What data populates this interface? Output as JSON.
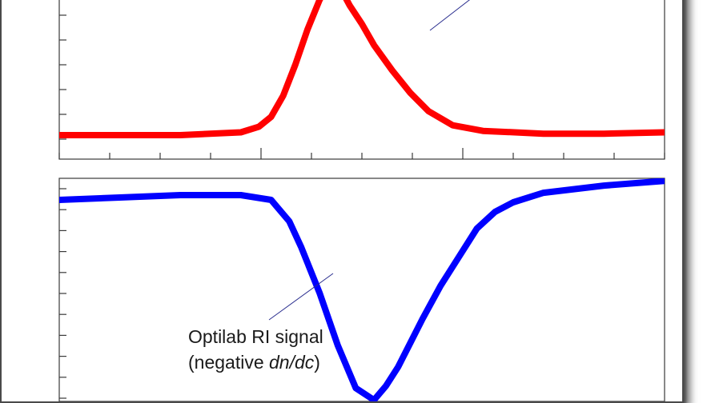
{
  "chart_data": [
    {
      "type": "line",
      "series": [
        {
          "color": "#ff0000",
          "x": [
            0,
            0.1,
            0.2,
            0.3,
            0.33,
            0.35,
            0.37,
            0.39,
            0.41,
            0.43,
            0.44,
            0.45,
            0.46,
            0.47,
            0.48,
            0.5,
            0.52,
            0.55,
            0.58,
            0.61,
            0.65,
            0.7,
            0.8,
            0.9,
            1.0
          ],
          "y": [
            0.0,
            0.0,
            0.0,
            0.02,
            0.06,
            0.13,
            0.28,
            0.5,
            0.75,
            0.96,
            1.04,
            1.08,
            1.06,
            1.0,
            0.92,
            0.79,
            0.64,
            0.46,
            0.3,
            0.17,
            0.07,
            0.03,
            0.01,
            0.01,
            0.02
          ]
        }
      ],
      "grid": false
    },
    {
      "type": "line",
      "series": [
        {
          "color": "#0000ff",
          "x": [
            0,
            0.1,
            0.2,
            0.3,
            0.35,
            0.38,
            0.4,
            0.43,
            0.46,
            0.49,
            0.52,
            0.54,
            0.56,
            0.58,
            0.6,
            0.63,
            0.66,
            0.69,
            0.72,
            0.75,
            0.8,
            0.9,
            1.0
          ],
          "y": [
            0.0,
            0.01,
            0.02,
            0.02,
            0.0,
            -0.09,
            -0.2,
            -0.39,
            -0.61,
            -0.79,
            -0.84,
            -0.78,
            -0.7,
            -0.6,
            -0.5,
            -0.36,
            -0.24,
            -0.12,
            -0.05,
            -0.01,
            0.03,
            0.06,
            0.08
          ]
        }
      ],
      "annotations": [
        {
          "lines": [
            "Optilab RI signal",
            "(negative dn/dc)"
          ],
          "target": "series-1"
        }
      ],
      "grid": false
    }
  ]
}
